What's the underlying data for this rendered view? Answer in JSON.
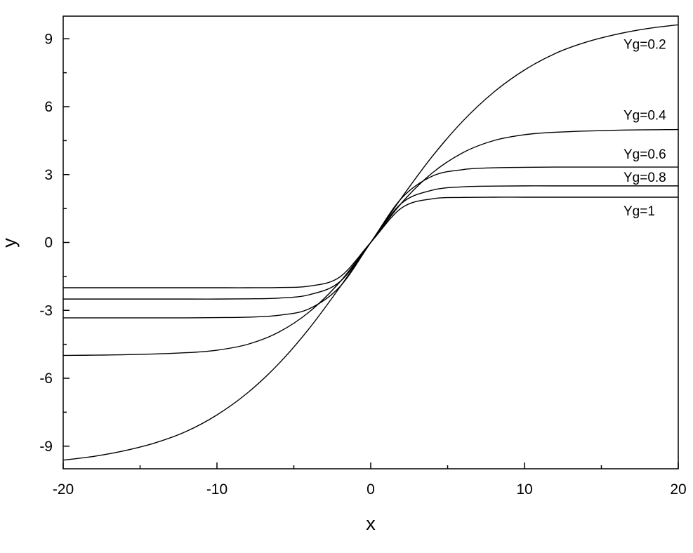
{
  "chart_data": {
    "type": "line",
    "title": "",
    "xlabel": "x",
    "ylabel": "y",
    "xlim": [
      -20,
      20
    ],
    "ylim": [
      -10,
      10
    ],
    "grid": false,
    "legend": "inline labels at right end of curves",
    "x_ticks": [
      -20,
      -10,
      0,
      10,
      20
    ],
    "x_tick_labels": [
      "-20",
      "-10",
      "0",
      "10",
      "20"
    ],
    "x_minor_ticks": [
      -15,
      -5,
      5,
      15
    ],
    "y_ticks": [
      -9,
      -6,
      -3,
      0,
      3,
      6,
      9
    ],
    "y_tick_labels": [
      "-9",
      "-6",
      "-3",
      "0",
      "3",
      "6",
      "9"
    ],
    "y_minor_ticks": [
      -7.5,
      -4.5,
      -1.5,
      1.5,
      4.5,
      7.5
    ],
    "line_color": "#000000",
    "series": [
      {
        "name": "Yg=0.2",
        "x": [
          -20,
          -18,
          -16,
          -14,
          -12,
          -10,
          -8,
          -6,
          -4,
          -2,
          0,
          2,
          4,
          6,
          8,
          10,
          12,
          14,
          16,
          18,
          20
        ],
        "y": [
          -9.62,
          -9.45,
          -9.2,
          -8.85,
          -8.35,
          -7.62,
          -6.64,
          -5.37,
          -3.8,
          -1.97,
          0,
          1.97,
          3.8,
          5.37,
          6.64,
          7.62,
          8.35,
          8.85,
          9.2,
          9.45,
          9.62
        ]
      },
      {
        "name": "Yg=0.4",
        "x": [
          -20,
          -16,
          -12,
          -10,
          -8,
          -6,
          -4,
          -2,
          0,
          2,
          4,
          6,
          8,
          10,
          12,
          16,
          20
        ],
        "y": [
          -4.99,
          -4.96,
          -4.87,
          -4.76,
          -4.5,
          -3.97,
          -3.07,
          -1.74,
          0,
          1.74,
          3.07,
          3.97,
          4.5,
          4.76,
          4.87,
          4.96,
          4.99
        ]
      },
      {
        "name": "Yg=0.6",
        "x": [
          -20,
          -16,
          -12,
          -10,
          -8,
          -6,
          -4,
          -2,
          0,
          2,
          4,
          6,
          8,
          10,
          12,
          16,
          20
        ],
        "y": [
          -3.33,
          -3.33,
          -3.33,
          -3.32,
          -3.3,
          -3.22,
          -2.93,
          -1.95,
          0,
          1.95,
          2.93,
          3.22,
          3.3,
          3.32,
          3.33,
          3.33,
          3.33
        ]
      },
      {
        "name": "Yg=0.8",
        "x": [
          -20,
          -16,
          -12,
          -10,
          -8,
          -6,
          -4,
          -2,
          0,
          2,
          4,
          6,
          8,
          10,
          12,
          16,
          20
        ],
        "y": [
          -2.5,
          -2.5,
          -2.5,
          -2.5,
          -2.49,
          -2.46,
          -2.31,
          -1.73,
          0,
          1.73,
          2.31,
          2.46,
          2.49,
          2.5,
          2.5,
          2.5,
          2.5
        ]
      },
      {
        "name": "Yg=1",
        "x": [
          -20,
          -16,
          -12,
          -10,
          -8,
          -6,
          -4,
          -2,
          0,
          2,
          4,
          6,
          8,
          10,
          12,
          16,
          20
        ],
        "y": [
          -2.0,
          -2.0,
          -2.0,
          -2.0,
          -2.0,
          -1.99,
          -1.93,
          -1.52,
          0,
          1.52,
          1.93,
          1.99,
          2.0,
          2.0,
          2.0,
          2.0,
          2.0
        ]
      }
    ]
  }
}
